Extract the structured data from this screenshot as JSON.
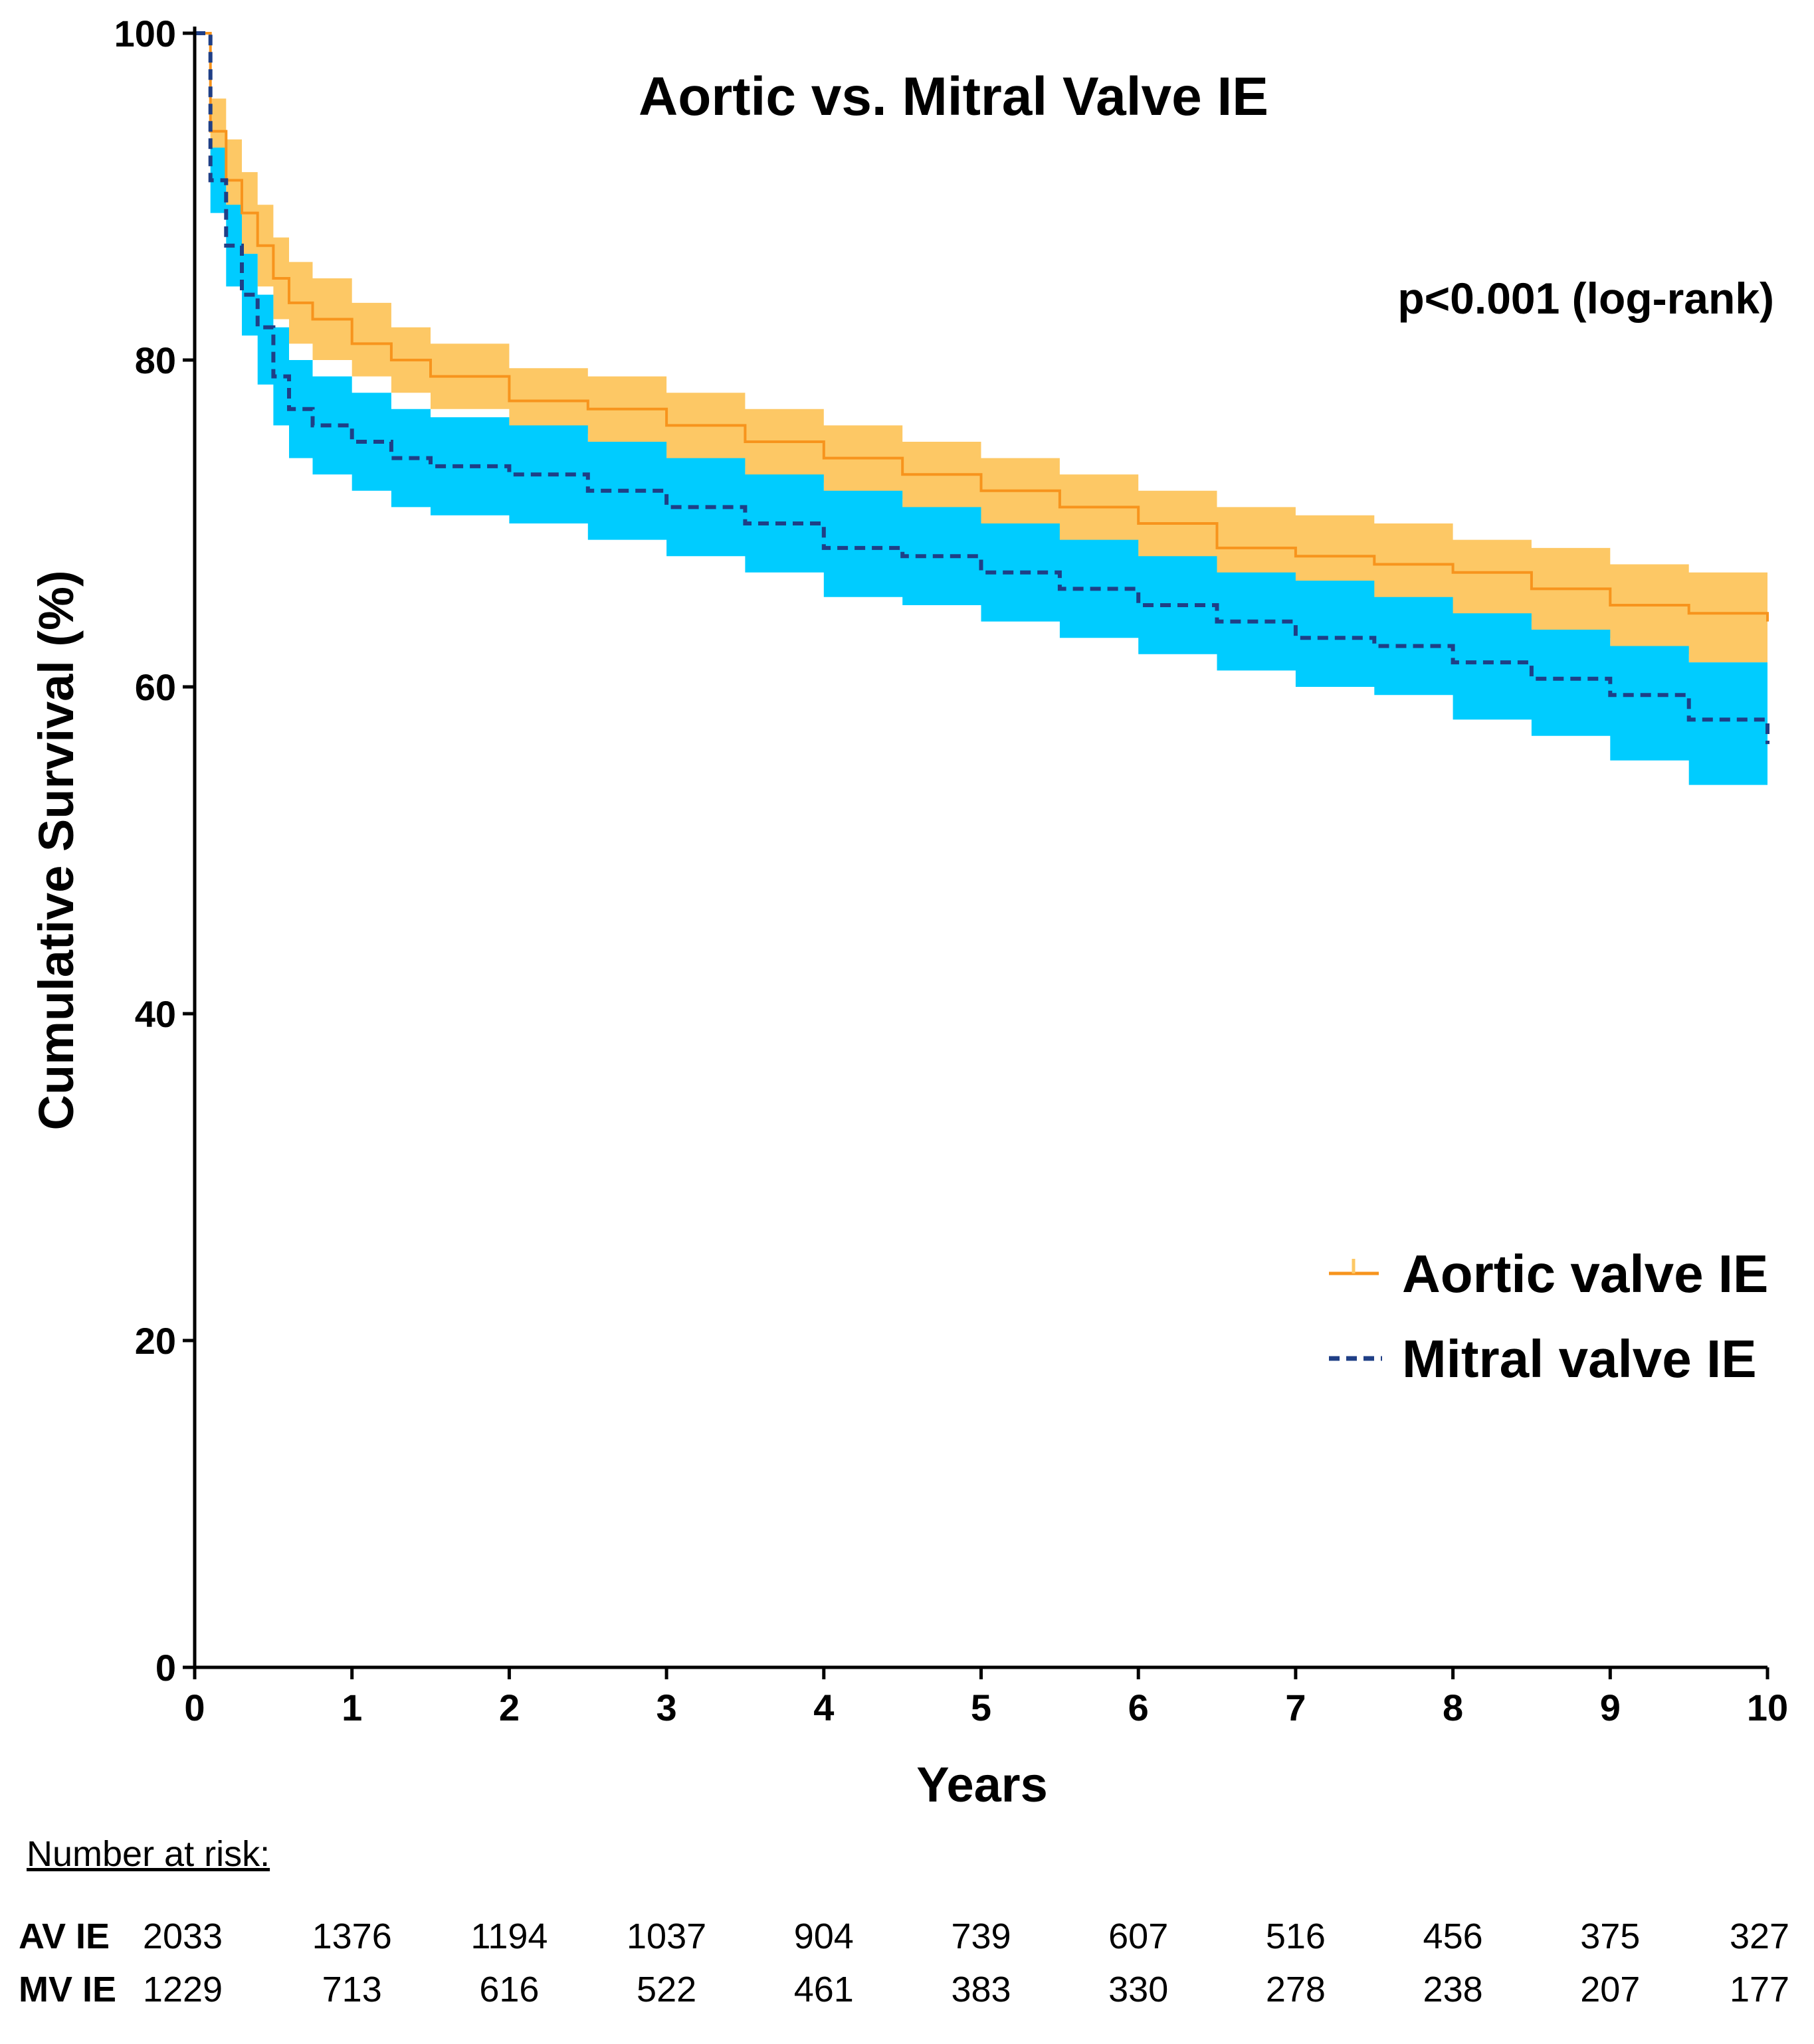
{
  "chart_data": {
    "type": "line",
    "title": "Aortic vs. Mitral Valve IE",
    "xlabel": "Years",
    "ylabel": "Cumulative Survival (%)",
    "xlim": [
      0,
      10
    ],
    "ylim": [
      0,
      100
    ],
    "xticks": [
      0,
      1,
      2,
      3,
      4,
      5,
      6,
      7,
      8,
      9,
      10
    ],
    "yticks": [
      0,
      20,
      40,
      60,
      80,
      100
    ],
    "xtick_labels": [
      "0",
      "1",
      "2",
      "3",
      "4",
      "5",
      "6",
      "7",
      "8",
      "9",
      "10"
    ],
    "ytick_labels": [
      "0",
      "20",
      "40",
      "60",
      "80",
      "100"
    ],
    "annotation": "p<0.001 (log-rank)",
    "legend_position": "right",
    "series": [
      {
        "name": "Aortic valve IE",
        "line_color": "#F7941D",
        "band_color": "#FDC865",
        "style": "solid",
        "x": [
          0,
          0.1,
          0.2,
          0.3,
          0.4,
          0.5,
          0.6,
          0.75,
          1,
          1.25,
          1.5,
          2,
          2.5,
          3,
          3.5,
          4,
          4.5,
          5,
          5.5,
          6,
          6.5,
          7,
          7.5,
          8,
          8.5,
          9,
          9.5,
          10
        ],
        "y": [
          100,
          94,
          91,
          89,
          87,
          85,
          83.5,
          82.5,
          81,
          80,
          79,
          77.5,
          77,
          76,
          75,
          74,
          73,
          72,
          71,
          70,
          68.5,
          68,
          67.5,
          67,
          66,
          65,
          64.5,
          64
        ],
        "lower": [
          100,
          92,
          89,
          86.5,
          84.5,
          82.5,
          81,
          80,
          79,
          78,
          77,
          75.5,
          74.5,
          73.5,
          72.5,
          71.5,
          70.5,
          69,
          68,
          67,
          66,
          65,
          64.5,
          64,
          63,
          62,
          61.5,
          61
        ],
        "upper": [
          100,
          96,
          93.5,
          91.5,
          89.5,
          87.5,
          86,
          85,
          83.5,
          82,
          81,
          79.5,
          79,
          78,
          77,
          76,
          75,
          74,
          73,
          72,
          71,
          70.5,
          70,
          69,
          68.5,
          67.5,
          67,
          66.5
        ]
      },
      {
        "name": "Mitral valve IE",
        "line_color": "#1F3F86",
        "band_color": "#00CCFF",
        "style": "dashed",
        "x": [
          0,
          0.1,
          0.2,
          0.3,
          0.4,
          0.5,
          0.6,
          0.75,
          1,
          1.25,
          1.5,
          2,
          2.5,
          3,
          3.5,
          4,
          4.5,
          5,
          5.5,
          6,
          6.5,
          7,
          7.5,
          8,
          8.5,
          9,
          9.5,
          10
        ],
        "y": [
          100,
          91,
          87,
          84,
          82,
          79,
          77,
          76,
          75,
          74,
          73.5,
          73,
          72,
          71,
          70,
          68.5,
          68,
          67,
          66,
          65,
          64,
          63,
          62.5,
          61.5,
          60.5,
          59.5,
          58,
          56.5
        ],
        "lower": [
          100,
          89,
          84.5,
          81.5,
          78.5,
          76,
          74,
          73,
          72,
          71,
          70.5,
          70,
          69,
          68,
          67,
          65.5,
          65,
          64,
          63,
          62,
          61,
          60,
          59.5,
          58,
          57,
          55.5,
          54,
          52.5
        ],
        "upper": [
          100,
          93,
          89.5,
          86.5,
          84,
          82,
          80,
          79,
          78,
          77,
          76.5,
          76,
          75,
          74,
          73,
          72,
          71,
          70,
          69,
          68,
          67,
          66.5,
          65.5,
          64.5,
          63.5,
          62.5,
          61.5,
          60.5
        ]
      }
    ],
    "number_at_risk": {
      "heading": "Number at risk:",
      "rows": [
        {
          "label": "AV IE",
          "values": [
            "2033",
            "1376",
            "1194",
            "1037",
            "904",
            "739",
            "607",
            "516",
            "456",
            "375",
            "327"
          ]
        },
        {
          "label": "MV IE",
          "values": [
            "1229",
            "713",
            "616",
            "522",
            "461",
            "383",
            "330",
            "278",
            "238",
            "207",
            "177"
          ]
        }
      ]
    }
  }
}
